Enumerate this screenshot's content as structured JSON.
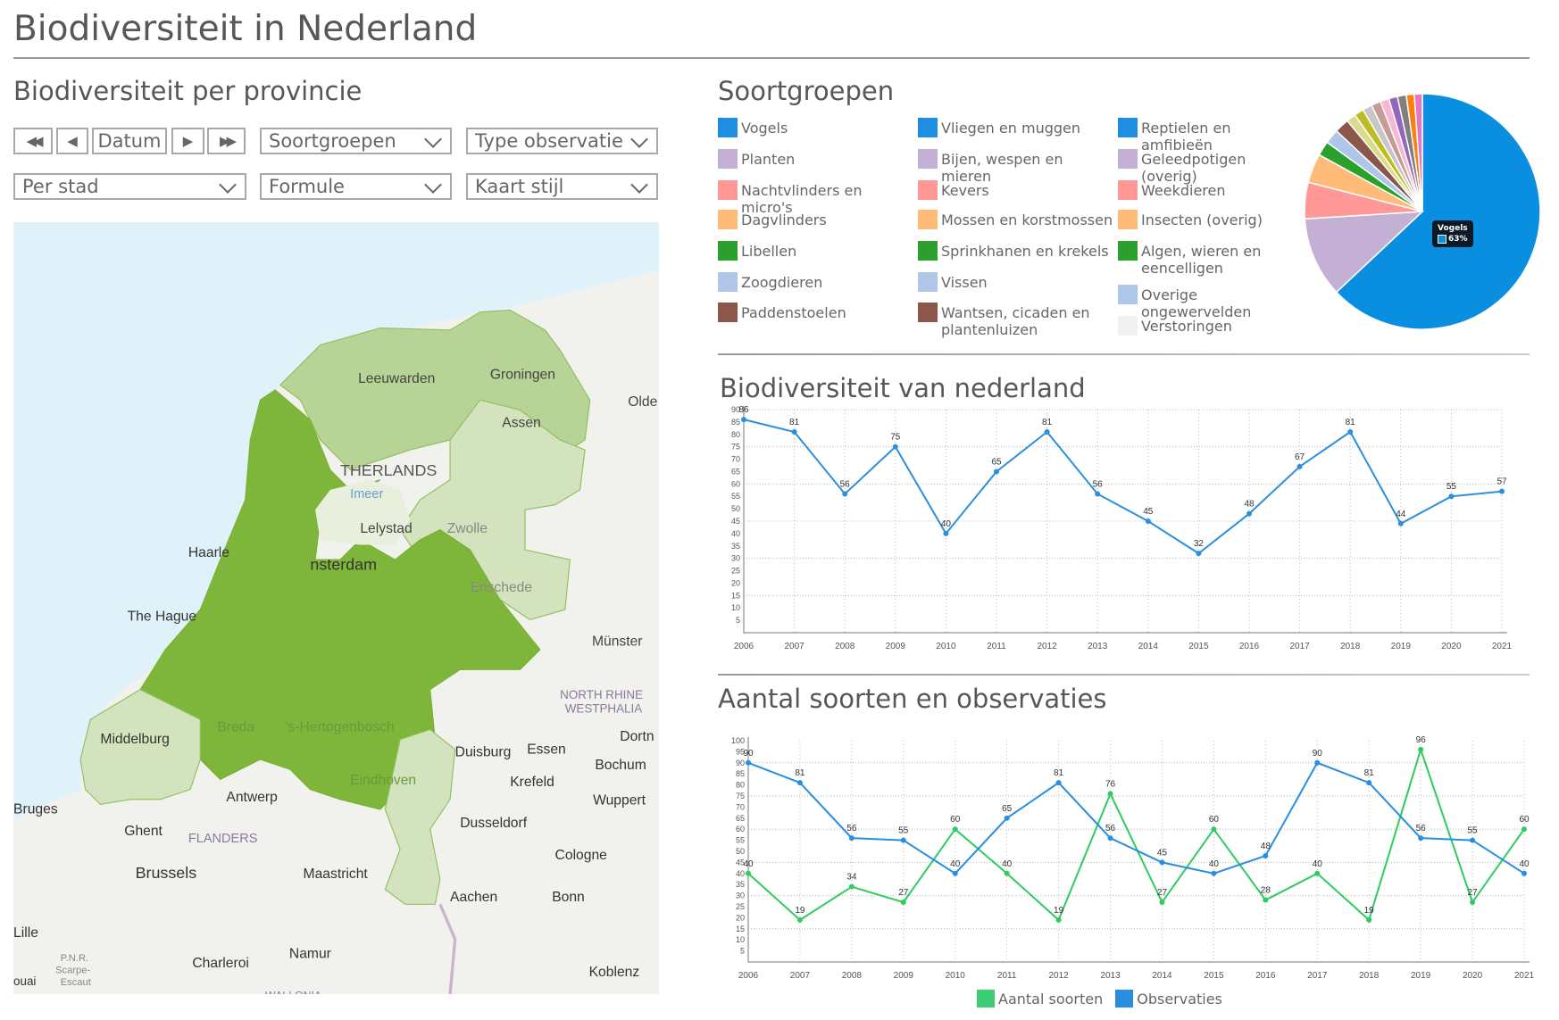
{
  "page": {
    "title": "Biodiversiteit in Nederland"
  },
  "left": {
    "heading": "Biodiversiteit per provincie",
    "controls": {
      "first_label": "◀◀",
      "prev_label": "◀",
      "date_label": "Datum",
      "next_label": "▶",
      "last_label": "▶▶",
      "soortgroepen": "Soortgroepen",
      "type_observatie": "Type observatie",
      "per_stad": "Per stad",
      "formule": "Formule",
      "kaart_stijl": "Kaart stijl"
    },
    "map": {
      "colors": {
        "sea": "#dff2fa",
        "land": "#f1f1ee",
        "dark": "#7db63a",
        "mid": "#b7d396",
        "pale": "#d3e3bd"
      },
      "labels": [
        "Leeuwarden",
        "Groningen",
        "Assen",
        "Olde",
        "THERLANDS",
        "Imeer",
        "Lelystad",
        "Zwolle",
        "Haarle",
        "nsterdam",
        "Enschede",
        "The Hague",
        "Münster",
        "NORTH RHINE",
        "WESTPHALIA",
        "Middelburg",
        "Breda",
        "'s-Hertogenbosch",
        "Duisburg",
        "Essen",
        "Dortn",
        "Bochum",
        "Eindhoven",
        "Krefeld",
        "Antwerp",
        "Wuppert",
        "Bruges",
        "Dusseldorf",
        "Ghent",
        "FLANDERS",
        "Cologne",
        "Brussels",
        "Maastricht",
        "Aachen",
        "Bonn",
        "Lille",
        "Charleroi",
        "Namur",
        "P.N.R.",
        "Scarpe-",
        "Escaut",
        "ouai",
        "Koblenz",
        "WALLONIA"
      ]
    }
  },
  "soortgroepen": {
    "heading": "Soortgroepen",
    "legend": [
      {
        "label": "Vogels",
        "color": "#1f8de0"
      },
      {
        "label": "Planten",
        "color": "#c5b0d5"
      },
      {
        "label": "Nachtvlinders en micro's",
        "color": "#ff9896"
      },
      {
        "label": "Dagvlinders",
        "color": "#ffbb78"
      },
      {
        "label": "Libellen",
        "color": "#2ca02c"
      },
      {
        "label": "Zoogdieren",
        "color": "#aec7e8"
      },
      {
        "label": "Paddenstoelen",
        "color": "#8c564b"
      },
      {
        "label": "Vliegen en muggen",
        "color": "#1f8de0"
      },
      {
        "label": "Bijen, wespen en mieren",
        "color": "#c5b0d5"
      },
      {
        "label": "Kevers",
        "color": "#ff9896"
      },
      {
        "label": "Mossen en korstmossen",
        "color": "#ffbb78"
      },
      {
        "label": "Sprinkhanen en krekels",
        "color": "#2ca02c"
      },
      {
        "label": "Vissen",
        "color": "#aec7e8"
      },
      {
        "label": "Wantsen, cicaden en plantenluizen",
        "color": "#8c564b"
      },
      {
        "label": "Reptielen en amfibieën",
        "color": "#1f8de0"
      },
      {
        "label": "Geleedpotigen (overig)",
        "color": "#c5b0d5"
      },
      {
        "label": "Weekdieren",
        "color": "#ff9896"
      },
      {
        "label": "Insecten (overig)",
        "color": "#ffbb78"
      },
      {
        "label": "Algen, wieren en eencelligen",
        "color": "#2ca02c"
      },
      {
        "label": "Overige ongewervelden",
        "color": "#aec7e8"
      },
      {
        "label": "Verstoringen",
        "color": "#f0f1f3"
      }
    ],
    "pie": {
      "tooltip_label": "Vogels",
      "tooltip_value": "63%",
      "slices": [
        {
          "value": 63,
          "color": "#0a8ee0"
        },
        {
          "value": 11,
          "color": "#c5b0d5"
        },
        {
          "value": 5,
          "color": "#ff9896"
        },
        {
          "value": 4,
          "color": "#ffbb78"
        },
        {
          "value": 2,
          "color": "#2ca02c"
        },
        {
          "value": 2,
          "color": "#aec7e8"
        },
        {
          "value": 2,
          "color": "#8c564b"
        },
        {
          "value": 1.3,
          "color": "#dbdb8d"
        },
        {
          "value": 1.3,
          "color": "#bcbd22"
        },
        {
          "value": 1.3,
          "color": "#c7c7c7"
        },
        {
          "value": 1.3,
          "color": "#c49c94"
        },
        {
          "value": 1.2,
          "color": "#f7b6d2"
        },
        {
          "value": 1.2,
          "color": "#9467bd"
        },
        {
          "value": 1.2,
          "color": "#7f7f7f"
        },
        {
          "value": 1.1,
          "color": "#ff7f0e"
        },
        {
          "value": 1.1,
          "color": "#e377c2"
        }
      ]
    }
  },
  "chart_data": [
    {
      "type": "line",
      "title": "Biodiversiteit van nederland",
      "x": [
        2006,
        2007,
        2008,
        2009,
        2010,
        2011,
        2012,
        2013,
        2014,
        2015,
        2016,
        2017,
        2018,
        2019,
        2020,
        2021
      ],
      "series": [
        {
          "values": [
            86,
            81,
            56,
            75,
            40,
            65,
            81,
            56,
            45,
            32,
            48,
            67,
            81,
            44,
            55,
            57
          ],
          "color": "#2d8fdc"
        }
      ],
      "ylim": [
        0,
        90
      ],
      "yticks": [
        5,
        10,
        15,
        20,
        25,
        30,
        35,
        40,
        45,
        50,
        55,
        60,
        65,
        70,
        75,
        80,
        85,
        90
      ],
      "grid": true
    },
    {
      "type": "line",
      "title": "Aantal soorten en observaties",
      "x": [
        2006,
        2007,
        2008,
        2009,
        2010,
        2011,
        2012,
        2013,
        2014,
        2015,
        2016,
        2017,
        2018,
        2019,
        2020,
        2021
      ],
      "series": [
        {
          "name": "Aantal soorten",
          "values": [
            40,
            19,
            34,
            27,
            60,
            40,
            19,
            76,
            27,
            60,
            28,
            40,
            19,
            96,
            27,
            60
          ],
          "color": "#2ecc5f"
        },
        {
          "name": "Observaties",
          "values": [
            90,
            81,
            56,
            55,
            40,
            65,
            81,
            56,
            45,
            40,
            48,
            90,
            81,
            56,
            55,
            40
          ],
          "color": "#2a8ee0"
        }
      ],
      "ylim": [
        0,
        100
      ],
      "yticks": [
        5,
        10,
        15,
        20,
        25,
        30,
        35,
        40,
        45,
        50,
        55,
        60,
        65,
        70,
        75,
        80,
        85,
        90,
        95,
        100
      ],
      "grid": true,
      "legend": "bottom"
    }
  ]
}
